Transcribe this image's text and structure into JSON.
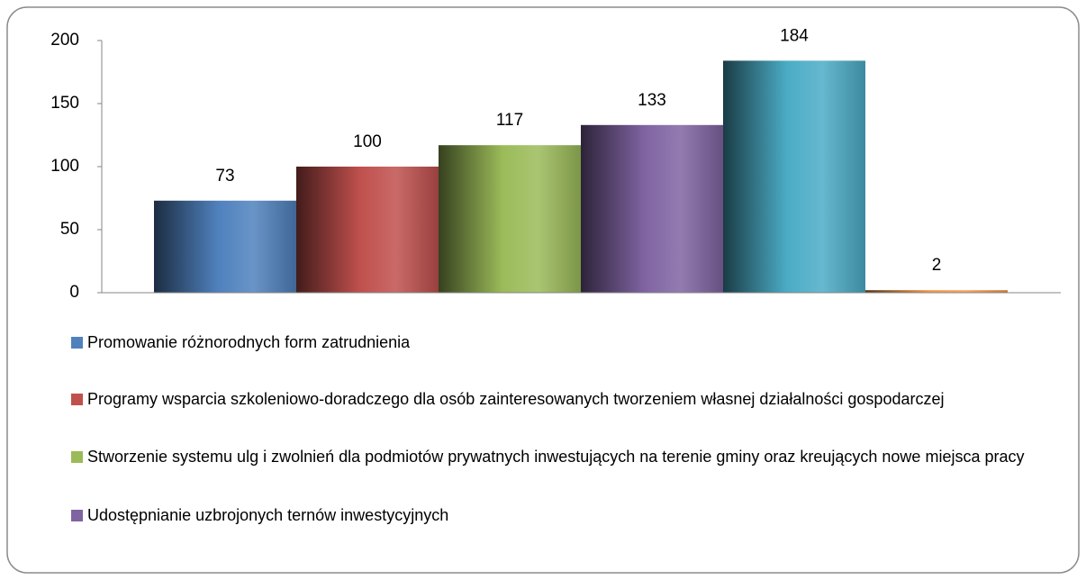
{
  "chart_data": {
    "type": "bar",
    "series": [
      {
        "name": "Promowanie różnorodnych form zatrudnienia",
        "color": "#4f81bd",
        "values": [
          73
        ]
      },
      {
        "name": "Programy wsparcia szkoleniowo-doradczego dla osób zainteresowanych tworzeniem własnej działalności gospodarczej",
        "color": "#c0504d",
        "values": [
          100
        ]
      },
      {
        "name": "Stworzenie systemu ulg i zwolnień dla podmiotów prywatnych inwestujących na terenie gminy oraz kreujących nowe miejsca pracy",
        "color": "#9bbb59",
        "values": [
          117
        ]
      },
      {
        "name": "Udostępnianie uzbrojonych ternów inwestycyjnych",
        "color": "#8064a2",
        "values": [
          133
        ]
      },
      {
        "color": "#4bacc6",
        "values": [
          184
        ]
      },
      {
        "color": "#f79646",
        "values": [
          2
        ]
      }
    ],
    "ylim": [
      0,
      200
    ],
    "yticks": [
      0,
      50,
      100,
      150,
      200
    ],
    "grid": false,
    "legend": "bottom"
  }
}
